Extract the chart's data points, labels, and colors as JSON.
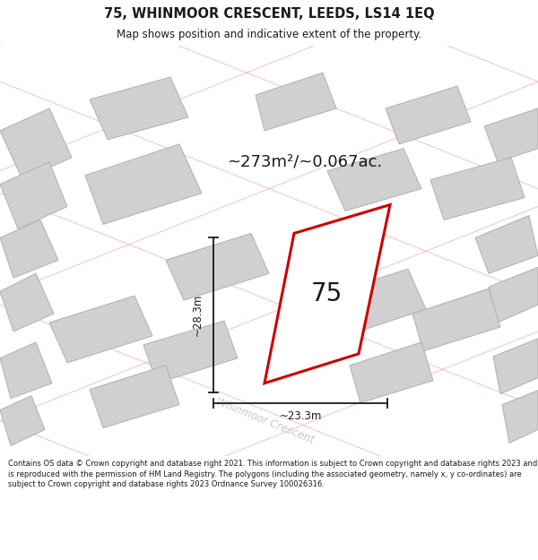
{
  "title_line1": "75, WHINMOOR CRESCENT, LEEDS, LS14 1EQ",
  "title_line2": "Map shows position and indicative extent of the property.",
  "area_text": "~273m²/~0.067ac.",
  "property_number": "75",
  "dim_width": "~23.3m",
  "dim_height": "~28.3m",
  "street_name": "Whinmoor Crescent",
  "footer_text": "Contains OS data © Crown copyright and database right 2021. This information is subject to Crown copyright and database rights 2023 and is reproduced with the permission of HM Land Registry. The polygons (including the associated geometry, namely x, y co-ordinates) are subject to Crown copyright and database rights 2023 Ordnance Survey 100026316.",
  "bg_color": "#ffffff",
  "map_bg_color": "#f5f5f2",
  "property_fill": "#ffffff",
  "property_edge": "#cc0000",
  "building_fill": "#d0d0d0",
  "building_edge": "#b0b0b0",
  "road_line_color": "#e8a8a8",
  "text_color_dark": "#1a1a1a",
  "street_text_color": "#c0b8b8",
  "title_area_color": "#ffffff",
  "footer_bg": "#f0ede8"
}
